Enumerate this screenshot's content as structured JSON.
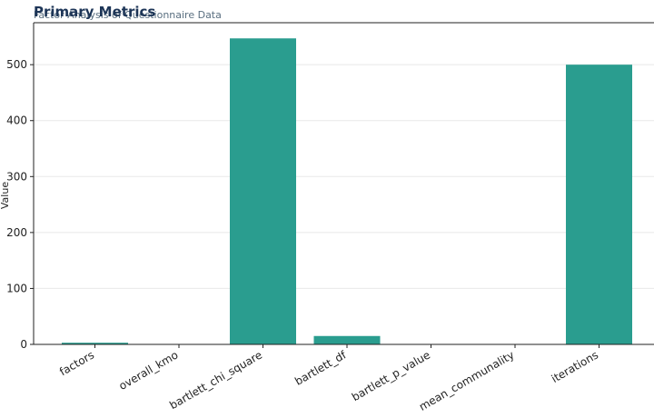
{
  "chart_data": {
    "type": "bar",
    "title": "Primary Metrics",
    "subtitle": "Factor Analysis of Questionnaire Data",
    "y_label": "Value",
    "categories": [
      "factors",
      "overall_kmo",
      "bartlett_chi_square",
      "bartlett_df",
      "bartlett_p_value",
      "mean_communality",
      "iterations"
    ],
    "values": [
      3,
      0.8,
      547,
      15,
      0,
      0.6,
      500
    ],
    "color": "#2a9d8f",
    "ylim": [
      0,
      575
    ],
    "yticks": [
      0,
      100,
      200,
      300,
      400,
      500
    ],
    "grid": true
  }
}
